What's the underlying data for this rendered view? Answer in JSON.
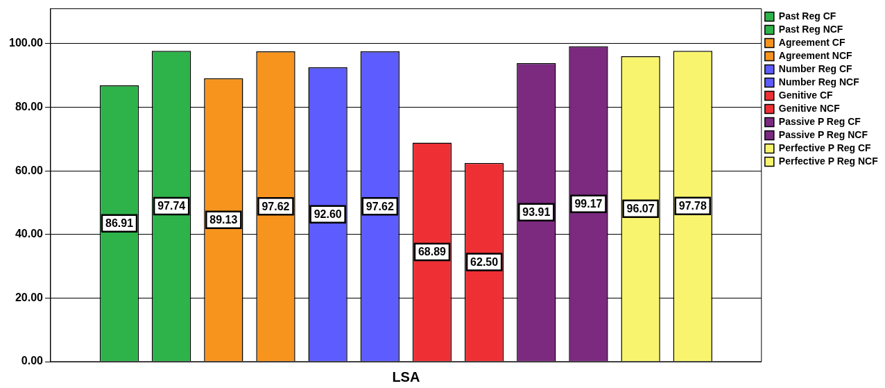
{
  "chart_data": {
    "type": "bar",
    "categories": [
      "LSA"
    ],
    "series": [
      {
        "name": "Past Reg CF",
        "color": "#2eb34b",
        "values": [
          86.91
        ],
        "value_labels": [
          "86.91"
        ]
      },
      {
        "name": "Past Reg NCF",
        "color": "#2eb34b",
        "values": [
          97.74
        ],
        "value_labels": [
          "97.74"
        ]
      },
      {
        "name": "Agreement CF",
        "color": "#f7941e",
        "values": [
          89.13
        ],
        "value_labels": [
          "89.13"
        ]
      },
      {
        "name": "Agreement NCF",
        "color": "#f7941e",
        "values": [
          97.62
        ],
        "value_labels": [
          "97.62"
        ]
      },
      {
        "name": "Number Reg CF",
        "color": "#5c5cff",
        "values": [
          92.6
        ],
        "value_labels": [
          "92.60"
        ]
      },
      {
        "name": "Number Reg NCF",
        "color": "#5c5cff",
        "values": [
          97.62
        ],
        "value_labels": [
          "97.62"
        ]
      },
      {
        "name": "Genitive CF",
        "color": "#ee3035",
        "values": [
          68.89
        ],
        "value_labels": [
          "68.89"
        ]
      },
      {
        "name": "Genitive NCF",
        "color": "#ee3035",
        "values": [
          62.5
        ],
        "value_labels": [
          "62.50"
        ]
      },
      {
        "name": "Passive P Reg CF",
        "color": "#7b2a80",
        "values": [
          93.91
        ],
        "value_labels": [
          "93.91"
        ]
      },
      {
        "name": "Passive P Reg NCF",
        "color": "#7b2a80",
        "values": [
          99.17
        ],
        "value_labels": [
          "99.17"
        ]
      },
      {
        "name": "Perfective P Reg CF",
        "color": "#f8f46e",
        "values": [
          96.07
        ],
        "value_labels": [
          "96.07"
        ]
      },
      {
        "name": "Perfective P Reg NCF",
        "color": "#f8f46e",
        "values": [
          97.78
        ],
        "value_labels": [
          "97.78"
        ]
      }
    ],
    "ylim": [
      0,
      111
    ],
    "yticks": [
      {
        "value": 0,
        "label": "0.00"
      },
      {
        "value": 20,
        "label": "20.00"
      },
      {
        "value": 40,
        "label": "40.00"
      },
      {
        "value": 60,
        "label": "60.00"
      },
      {
        "value": 80,
        "label": "80.00"
      },
      {
        "value": 100,
        "label": "100.00"
      }
    ],
    "grid": "y",
    "legend": "top right"
  }
}
